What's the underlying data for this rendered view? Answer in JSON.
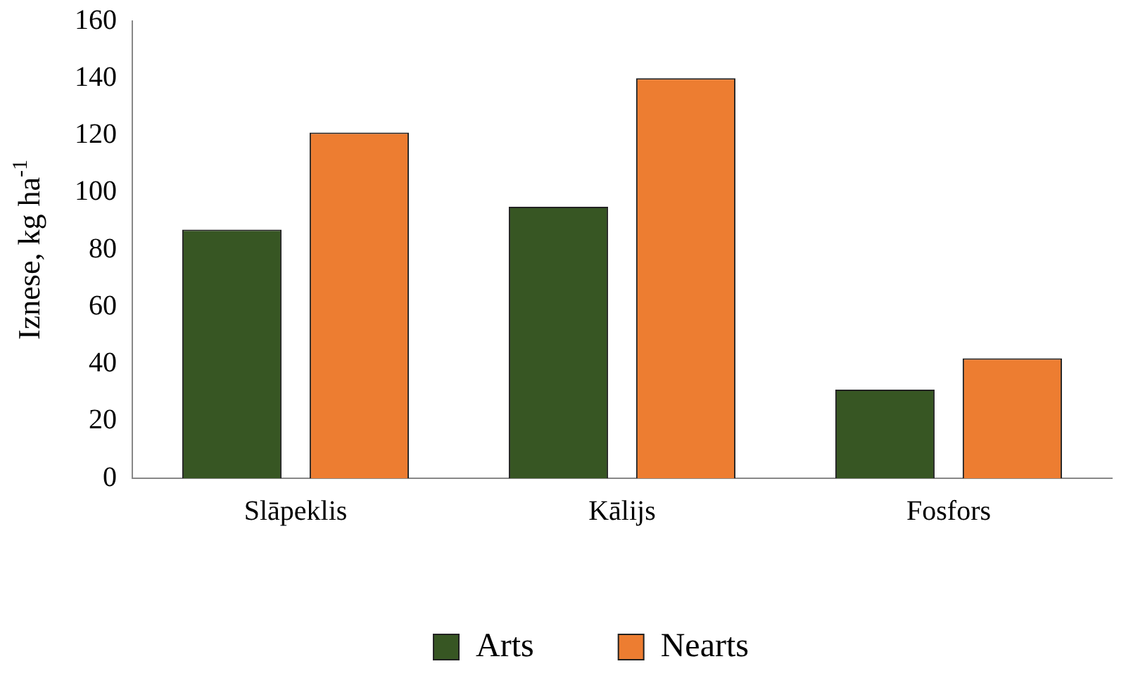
{
  "chart_data": {
    "type": "bar",
    "ylabel": "Iznese, kg ha$^{-1}$",
    "categories": [
      "Slāpeklis",
      "Kālijs",
      "Fosfors"
    ],
    "series": [
      {
        "name": "Arts",
        "color": "#375623",
        "values": [
          87,
          95,
          31
        ]
      },
      {
        "name": "Nearts",
        "color": "#ed7d31",
        "values": [
          121,
          140,
          42
        ]
      }
    ],
    "ylim": [
      0,
      160
    ],
    "yticks": [
      0,
      20,
      40,
      60,
      80,
      100,
      120,
      140,
      160
    ],
    "grid": false,
    "legend": "bottom"
  }
}
